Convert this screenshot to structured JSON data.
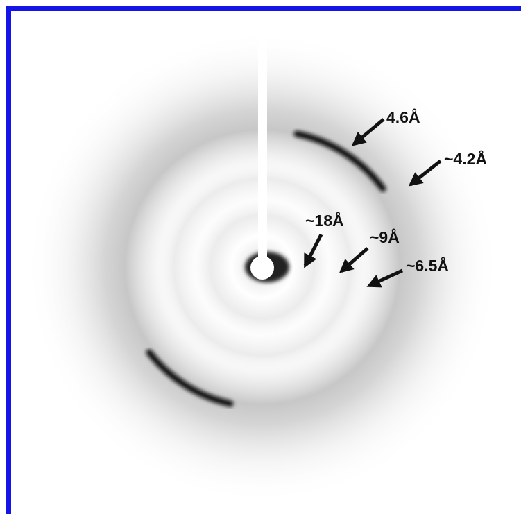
{
  "annotations": [
    "4.6Å",
    "~4.2Å",
    "~18Å",
    "~9Å",
    "~6.5Å"
  ]
}
